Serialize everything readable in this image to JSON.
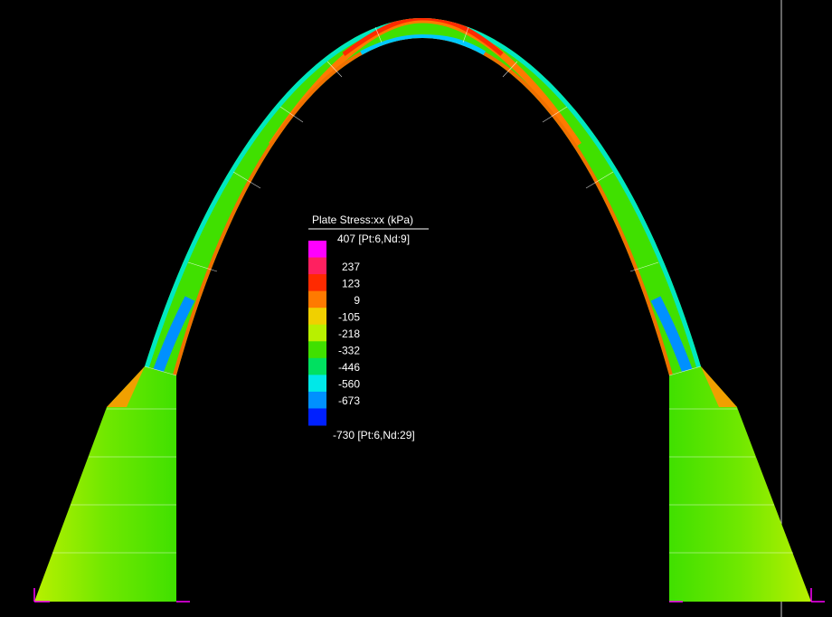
{
  "legend": {
    "title": "Plate Stress:xx (kPa)",
    "max_label": "407 [Pt:6,Nd:9]",
    "labels": [
      "237",
      "123",
      "9",
      "-105",
      "-218",
      "-332",
      "-446",
      "-560",
      "-673"
    ],
    "min_label": "-730 [Pt:6,Nd:29]",
    "colors": [
      "#ff00ff",
      "#ff2060",
      "#ff2a00",
      "#ff7a00",
      "#f0d000",
      "#b8f000",
      "#40e000",
      "#00e060",
      "#00e8e8",
      "#0090ff",
      "#0020ff"
    ]
  }
}
